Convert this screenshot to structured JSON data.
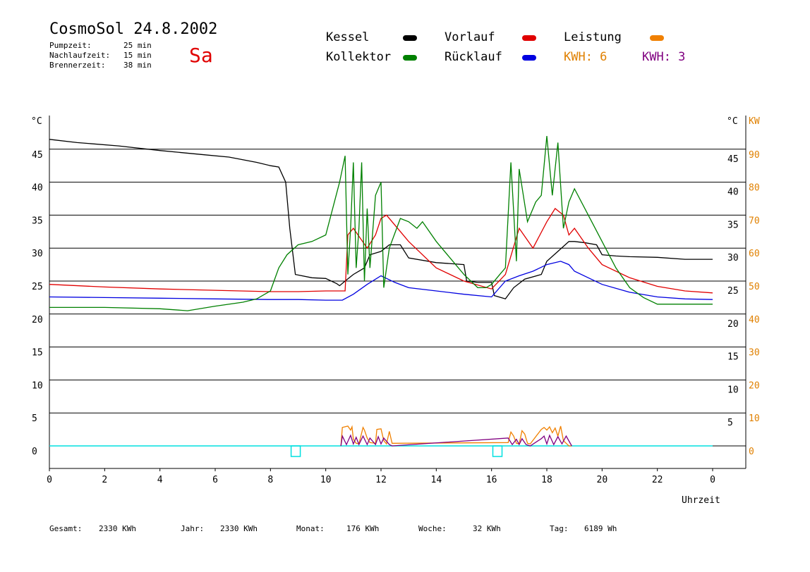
{
  "header": {
    "title": "CosmoSol 24.8.2002",
    "day": "Sa",
    "stats": [
      {
        "label": "Pumpzeit:",
        "value": "25 min"
      },
      {
        "label": "Nachlaufzeit:",
        "value": "15 min"
      },
      {
        "label": "Brennerzeit:",
        "value": "38 min"
      }
    ]
  },
  "legend": {
    "kessel": {
      "label": "Kessel",
      "color": "#000000"
    },
    "vorlauf": {
      "label": "Vorlauf",
      "color": "#e00000"
    },
    "leistung": {
      "label": "Leistung",
      "color": "#f08000"
    },
    "kollektor": {
      "label": "Kollektor",
      "color": "#008000"
    },
    "ruecklauf": {
      "label": "Rücklauf",
      "color": "#0000e0"
    },
    "kwh1": "KWH: 6",
    "kwh2": "KWH: 3",
    "kwh1_color": "#e08000",
    "kwh2_color": "#800080"
  },
  "footer": [
    {
      "label": "Gesamt:",
      "value": "2330 KWh"
    },
    {
      "label": "Jahr:",
      "value": "2330 KWh"
    },
    {
      "label": "Monat:",
      "value": "176 KWh"
    },
    {
      "label": "Woche:",
      "value": "32 KWh"
    },
    {
      "label": "Tag:",
      "value": "6189 Wh"
    }
  ],
  "chart_data": {
    "type": "line",
    "xlabel": "Uhrzeit",
    "ylabel_left": "°C",
    "ylabel_right_temp": "°C",
    "ylabel_right_power": "KW",
    "xlim": [
      0,
      24
    ],
    "ylim": [
      -3.5,
      50
    ],
    "x_ticks": [
      "0",
      "2",
      "4",
      "6",
      "8",
      "10",
      "12",
      "14",
      "16",
      "18",
      "20",
      "22",
      "0"
    ],
    "y_ticks_left": [
      "45",
      "40",
      "35",
      "30",
      "25",
      "20",
      "15",
      "10",
      "5",
      "0"
    ],
    "y_ticks_right_temp": [
      "45",
      "40",
      "35",
      "30",
      "25",
      "20",
      "15",
      "10",
      "5"
    ],
    "y_ticks_right_power": [
      "90",
      "80",
      "70",
      "60",
      "50",
      "40",
      "30",
      "20",
      "10",
      "0"
    ],
    "grid": true,
    "series": [
      {
        "name": "Kessel",
        "color": "#000000",
        "x": [
          0,
          1,
          2.5,
          4,
          5.5,
          6.5,
          7.5,
          8,
          8.3,
          8.55,
          8.7,
          8.9,
          9.5,
          10,
          10.4,
          10.5,
          10.7,
          11,
          11.4,
          11.6,
          12,
          12.3,
          12.7,
          13,
          14,
          15,
          15.1,
          15.5,
          16,
          16.1,
          16.5,
          16.8,
          17.2,
          17.8,
          18,
          18.4,
          18.8,
          19,
          19.4,
          19.8,
          20,
          20.5,
          21,
          22,
          23,
          24
        ],
        "y": [
          46.5,
          46,
          45.5,
          44.8,
          44.2,
          43.8,
          43,
          42.5,
          42.3,
          40,
          33,
          26,
          25.5,
          25.4,
          24.6,
          24.3,
          25,
          26,
          27,
          29,
          29.5,
          30.5,
          30.5,
          28.5,
          27.8,
          27.5,
          25,
          24.8,
          24.8,
          22.8,
          22.3,
          24,
          25.3,
          26,
          28,
          29.5,
          31,
          31,
          30.8,
          30.5,
          29,
          28.8,
          28.7,
          28.6,
          28.3,
          28.3
        ]
      },
      {
        "name": "Vorlauf",
        "color": "#e00000",
        "x": [
          0,
          2,
          4,
          6,
          8,
          9,
          10,
          10.7,
          10.8,
          11,
          11.5,
          11.8,
          12,
          12.2,
          13,
          14,
          15,
          16,
          16.5,
          17,
          17.5,
          18,
          18.3,
          18.6,
          18.8,
          19,
          19.5,
          20,
          21,
          22,
          23,
          24
        ],
        "y": [
          24.5,
          24.1,
          23.8,
          23.6,
          23.4,
          23.4,
          23.5,
          23.5,
          32,
          33,
          30,
          32,
          34.5,
          35,
          31,
          27,
          25,
          23.8,
          26,
          33,
          30,
          34,
          36,
          35,
          32,
          33,
          30,
          27.5,
          25.5,
          24.2,
          23.5,
          23.2
        ]
      },
      {
        "name": "Rücklauf",
        "color": "#0000e0",
        "x": [
          0,
          2,
          4,
          6,
          8,
          9,
          10,
          10.6,
          11,
          11.5,
          12,
          12.5,
          13,
          14,
          15,
          16,
          16.5,
          17,
          17.5,
          18,
          18.5,
          18.8,
          19,
          20,
          21,
          22,
          23,
          24
        ],
        "y": [
          22.6,
          22.5,
          22.4,
          22.3,
          22.2,
          22.2,
          22.1,
          22.1,
          23,
          24.5,
          25.8,
          24.8,
          24,
          23.5,
          23,
          22.6,
          25,
          25.8,
          26.5,
          27.5,
          28,
          27.5,
          26.5,
          24.5,
          23.3,
          22.6,
          22.3,
          22.2
        ]
      },
      {
        "name": "Kollektor",
        "color": "#008000",
        "x": [
          0,
          2,
          4,
          5,
          6,
          7,
          7.5,
          8,
          8.3,
          8.6,
          9,
          9.5,
          10,
          10.5,
          10.7,
          10.8,
          10.9,
          11,
          11.1,
          11.2,
          11.3,
          11.4,
          11.5,
          11.6,
          11.8,
          12,
          12.1,
          12.3,
          12.7,
          13,
          13.3,
          13.5,
          14,
          14.5,
          15,
          15.5,
          15.8,
          16,
          16.3,
          16.5,
          16.7,
          16.9,
          17,
          17.3,
          17.6,
          17.8,
          18,
          18.2,
          18.4,
          18.6,
          18.8,
          19,
          19.5,
          20,
          20.5,
          21,
          21.5,
          22,
          23,
          24
        ],
        "y": [
          21,
          21,
          20.8,
          20.5,
          21.2,
          21.8,
          22.3,
          23.5,
          27,
          29,
          30.5,
          31,
          32,
          40,
          44,
          26,
          33,
          43,
          27,
          33,
          43,
          25,
          36,
          27,
          38,
          40,
          24,
          30,
          34.5,
          34,
          33,
          34,
          31,
          28.5,
          26,
          24,
          24,
          24.5,
          26,
          27,
          43,
          28,
          42,
          34,
          37,
          38,
          47,
          38,
          46,
          33,
          37,
          39,
          35,
          31,
          27,
          24,
          22.5,
          21.5,
          21.5,
          21.5
        ]
      }
    ],
    "power_series": [
      {
        "name": "Leistung",
        "color": "#f08000",
        "x": [
          10.55,
          10.6,
          10.8,
          10.9,
          10.95,
          11,
          11.1,
          11.2,
          11.35,
          11.4,
          11.5,
          11.6,
          11.8,
          11.85,
          12,
          12.1,
          12.2,
          12.3,
          12.4,
          16.6,
          16.7,
          16.8,
          16.9,
          17,
          17.1,
          17.2,
          17.3,
          17.4,
          17.8,
          17.9,
          18.0,
          18.1,
          18.2,
          18.3,
          18.4,
          18.5,
          18.6,
          18.7,
          18.8,
          18.9
        ],
        "y": [
          0,
          2.8,
          3.0,
          2.4,
          2.9,
          1.0,
          0.4,
          0.3,
          2.8,
          2.4,
          1.2,
          0.5,
          0.4,
          2.5,
          2.6,
          0.8,
          0.3,
          2.2,
          0.4,
          0.5,
          2.1,
          1.5,
          0.4,
          0.3,
          2.3,
          1.8,
          0.4,
          0.3,
          2.5,
          2.8,
          2.4,
          2.9,
          2.0,
          2.7,
          1.5,
          3.0,
          0.8,
          0.4,
          0,
          0
        ]
      },
      {
        "name": "KWH 3",
        "color": "#800080",
        "x": [
          10.55,
          10.6,
          10.75,
          10.9,
          11,
          11.1,
          11.2,
          11.35,
          11.5,
          11.6,
          11.8,
          11.9,
          12.0,
          12.1,
          12.3,
          12.4,
          16.6,
          16.75,
          16.9,
          17.0,
          17.1,
          17.25,
          17.4,
          17.8,
          17.9,
          18.0,
          18.1,
          18.25,
          18.4,
          18.55,
          18.7,
          18.9
        ],
        "y": [
          0,
          1.5,
          0.2,
          1.6,
          0.3,
          1.3,
          0.2,
          1.5,
          0.2,
          1.2,
          0.2,
          1.4,
          0.3,
          1.2,
          0.2,
          0,
          1.2,
          0.2,
          1.0,
          0.2,
          1.1,
          0.2,
          0,
          1.1,
          1.5,
          0.3,
          1.6,
          0.2,
          1.4,
          0.3,
          1.5,
          0
        ]
      }
    ],
    "events": [
      {
        "x": 8.9,
        "label": ""
      },
      {
        "x": 16.2,
        "label": ""
      }
    ],
    "baseline_color": "#00e0e0"
  }
}
